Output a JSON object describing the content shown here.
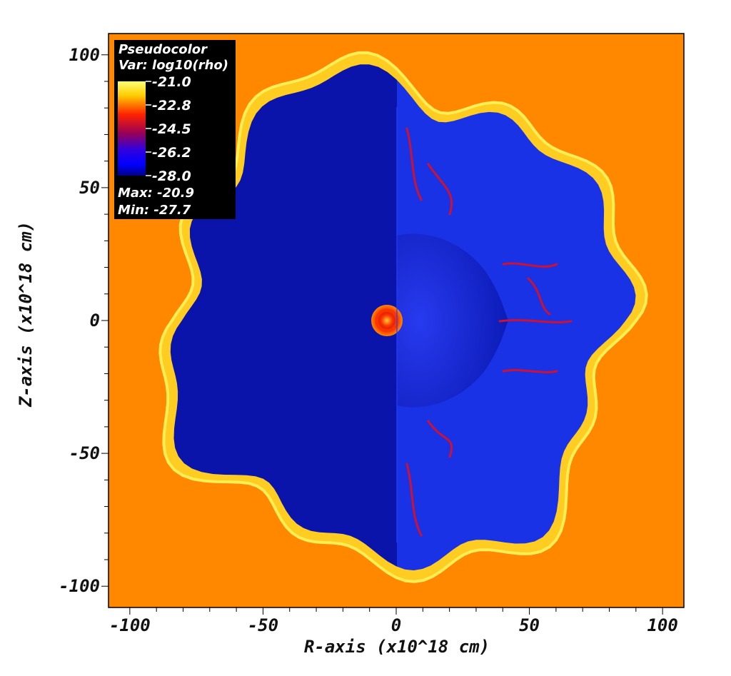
{
  "chart_data": {
    "type": "heatmap",
    "x_axis": {
      "label": "R-axis (x10^18 cm)",
      "range": [
        -108,
        108
      ],
      "major_ticks": [
        -100,
        -50,
        0,
        50,
        100
      ],
      "tick_labels": [
        "-100",
        "-50",
        "0",
        "50",
        "100"
      ]
    },
    "y_axis": {
      "label": "Z-axis (x10^18 cm)",
      "range": [
        -108,
        108
      ],
      "major_ticks": [
        -100,
        -50,
        0,
        50,
        100
      ],
      "tick_labels": [
        "-100",
        "-50",
        "0",
        "50",
        "100"
      ]
    },
    "legend": {
      "position": "top-left",
      "title": "Pseudocolor",
      "variable": "Var: log10(rho)",
      "scale_values": [
        "-21.0",
        "-22.8",
        "-24.5",
        "-26.2",
        "-28.0"
      ],
      "max_label": "Max: -20.9",
      "min_label": "Min: -27.7",
      "colormap": [
        "#ffff66",
        "#ffcc00",
        "#ff2200",
        "#aa0044",
        "#4400cc",
        "#0000ff",
        "#000099"
      ]
    },
    "field": {
      "background_color": "#ff8800",
      "interior_left_color": "#0a14aa",
      "interior_right_color": "#1a32e6",
      "shell_color": "#ffcc22",
      "core_color": "#ff3300"
    }
  }
}
